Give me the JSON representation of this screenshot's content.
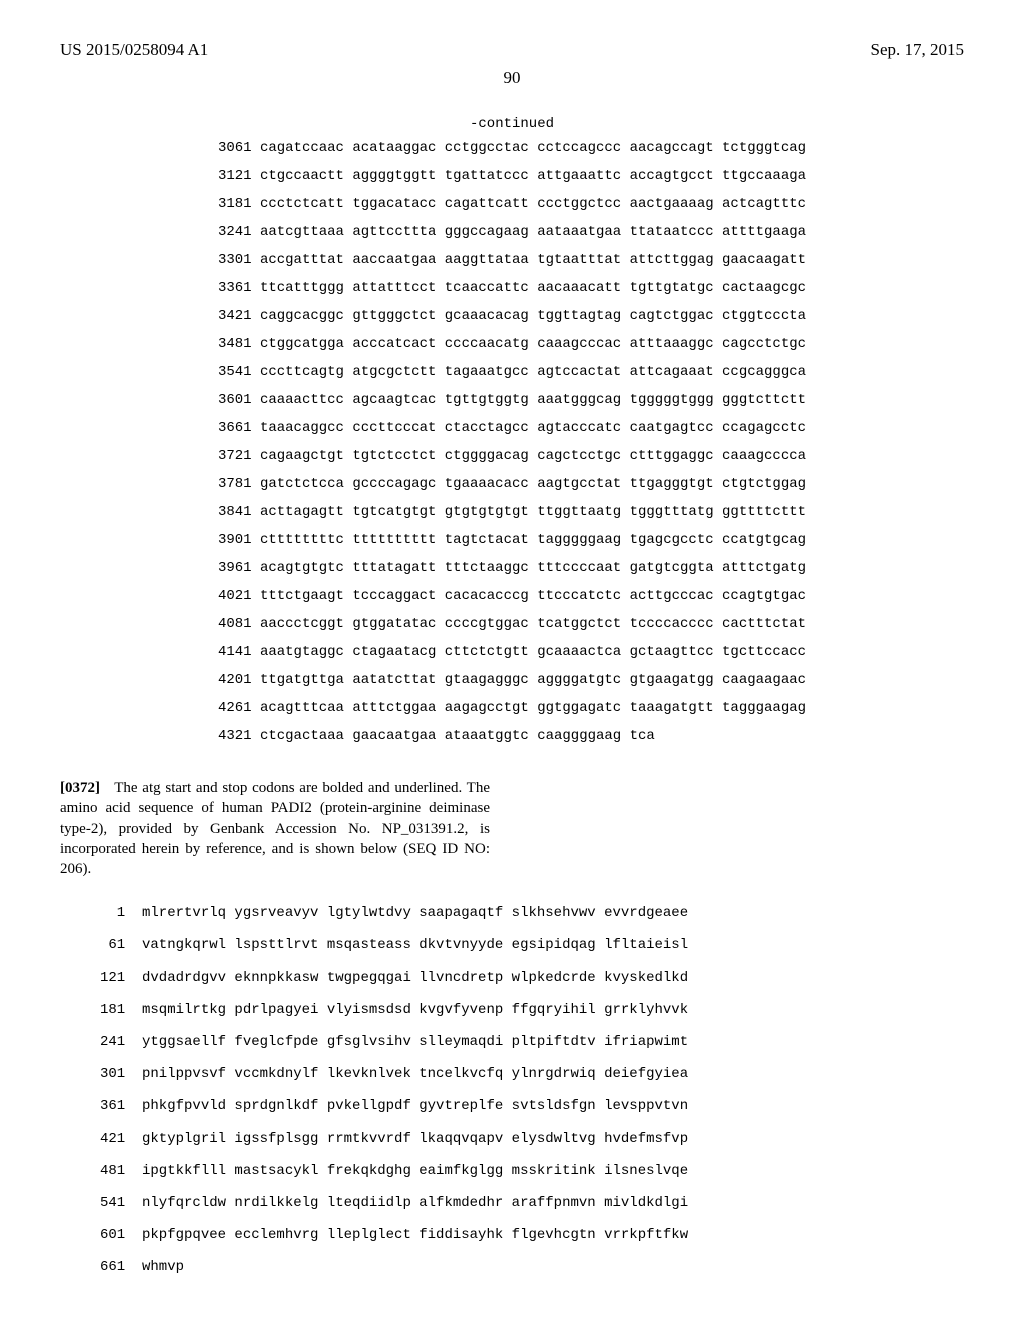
{
  "header": {
    "pub_number": "US 2015/0258094 A1",
    "pub_date": "Sep. 17, 2015"
  },
  "page_number": "90",
  "continued_label": "-continued",
  "dna_sequence": {
    "lines": [
      {
        "num": "3061",
        "groups": [
          "cagatccaac",
          "acataaggac",
          "cctggcctac",
          "cctccagccc",
          "aacagccagt",
          "tctgggtcag"
        ]
      },
      {
        "num": "3121",
        "groups": [
          "ctgccaactt",
          "aggggtggtt",
          "tgattatccc",
          "attgaaattc",
          "accagtgcct",
          "ttgccaaaga"
        ]
      },
      {
        "num": "3181",
        "groups": [
          "ccctctcatt",
          "tggacatacc",
          "cagattcatt",
          "ccctggctcc",
          "aactgaaaag",
          "actcagtttc"
        ]
      },
      {
        "num": "3241",
        "groups": [
          "aatcgttaaa",
          "agttccttta",
          "gggccagaag",
          "aataaatgaa",
          "ttataatccc",
          "attttgaaga"
        ]
      },
      {
        "num": "3301",
        "groups": [
          "accgatttat",
          "aaccaatgaa",
          "aaggttataa",
          "tgtaatttat",
          "attcttggag",
          "gaacaagatt"
        ]
      },
      {
        "num": "3361",
        "groups": [
          "ttcatttggg",
          "attatttcct",
          "tcaaccattc",
          "aacaaacatt",
          "tgttgtatgc",
          "cactaagcgc"
        ]
      },
      {
        "num": "3421",
        "groups": [
          "caggcacggc",
          "gttgggctct",
          "gcaaacacag",
          "tggttagtag",
          "cagtctggac",
          "ctggtcccta"
        ]
      },
      {
        "num": "3481",
        "groups": [
          "ctggcatgga",
          "acccatcact",
          "ccccaacatg",
          "caaagcccac",
          "atttaaaggc",
          "cagcctctgc"
        ]
      },
      {
        "num": "3541",
        "groups": [
          "cccttcagtg",
          "atgcgctctt",
          "tagaaatgcc",
          "agtccactat",
          "attcagaaat",
          "ccgcagggca"
        ]
      },
      {
        "num": "3601",
        "groups": [
          "caaaacttcc",
          "agcaagtcac",
          "tgttgtggtg",
          "aaatgggcag",
          "tgggggtggg",
          "gggtcttctt"
        ]
      },
      {
        "num": "3661",
        "groups": [
          "taaacaggcc",
          "cccttcccat",
          "ctacctagcc",
          "agtacccatc",
          "caatgagtcc",
          "ccagagcctc"
        ]
      },
      {
        "num": "3721",
        "groups": [
          "cagaagctgt",
          "tgtctcctct",
          "ctggggacag",
          "cagctcctgc",
          "ctttggaggc",
          "caaagcccca"
        ]
      },
      {
        "num": "3781",
        "groups": [
          "gatctctcca",
          "gccccagagc",
          "tgaaaacacc",
          "aagtgcctat",
          "ttgagggtgt",
          "ctgtctggag"
        ]
      },
      {
        "num": "3841",
        "groups": [
          "acttagagtt",
          "tgtcatgtgt",
          "gtgtgtgtgt",
          "ttggttaatg",
          "tgggtttatg",
          "ggttttcttt"
        ]
      },
      {
        "num": "3901",
        "groups": [
          "cttttttttc",
          "tttttttttt",
          "tagtctacat",
          "tagggggaag",
          "tgagcgcctc",
          "ccatgtgcag"
        ]
      },
      {
        "num": "3961",
        "groups": [
          "acagtgtgtc",
          "tttatagatt",
          "tttctaaggc",
          "tttccccaat",
          "gatgtcggta",
          "atttctgatg"
        ]
      },
      {
        "num": "4021",
        "groups": [
          "tttctgaagt",
          "tcccaggact",
          "cacacacccg",
          "ttcccatctc",
          "acttgcccac",
          "ccagtgtgac"
        ]
      },
      {
        "num": "4081",
        "groups": [
          "aaccctcggt",
          "gtggatatac",
          "ccccgtggac",
          "tcatggctct",
          "tccccacccc",
          "cactttctat"
        ]
      },
      {
        "num": "4141",
        "groups": [
          "aaatgtaggc",
          "ctagaatacg",
          "cttctctgtt",
          "gcaaaactca",
          "gctaagttcc",
          "tgcttccacc"
        ]
      },
      {
        "num": "4201",
        "groups": [
          "ttgatgttga",
          "aatatcttat",
          "gtaagagggc",
          "aggggatgtc",
          "gtgaagatgg",
          "caagaagaac"
        ]
      },
      {
        "num": "4261",
        "groups": [
          "acagtttcaa",
          "atttctggaa",
          "aagagcctgt",
          "ggtggagatc",
          "taaagatgtt",
          "tagggaagag"
        ]
      },
      {
        "num": "4321",
        "groups": [
          "ctcgactaaa",
          "gaacaatgaa",
          "ataaatggtc",
          "caaggggaag",
          "tca"
        ]
      }
    ]
  },
  "paragraph": {
    "label": "[0372]",
    "text": "The atg start and stop codons are bolded and underlined. The amino acid sequence of human PADI2 (protein-arginine deiminase type-2), provided by Genbank Accession No. NP_031391.2, is incorporated herein by reference, and is shown below (SEQ ID NO: 206)."
  },
  "aa_sequence": {
    "lines": [
      {
        "num": "1",
        "groups": [
          "mlrertvrlq",
          "ygsrveavyv",
          "lgtylwtdvy",
          "saapagaqtf",
          "slkhsehvwv",
          "evvrdgeaee"
        ]
      },
      {
        "num": "61",
        "groups": [
          "vatngkqrwl",
          "lspsttlrvt",
          "msqasteass",
          "dkvtvnyyde",
          "egsipidqag",
          "lfltaieisl"
        ]
      },
      {
        "num": "121",
        "groups": [
          "dvdadrdgvv",
          "eknnpkkasw",
          "twgpegqgai",
          "llvncdretp",
          "wlpkedcrde",
          "kvyskedlkd"
        ]
      },
      {
        "num": "181",
        "groups": [
          "msqmilrtkg",
          "pdrlpagyei",
          "vlyismsdsd",
          "kvgvfyvenp",
          "ffgqryihil",
          "grrklyhvvk"
        ]
      },
      {
        "num": "241",
        "groups": [
          "ytggsaellf",
          "fveglcfpde",
          "gfsglvsihv",
          "slleymaqdi",
          "pltpiftdtv",
          "ifriapwimt"
        ]
      },
      {
        "num": "301",
        "groups": [
          "pnilppvsvf",
          "vccmkdnylf",
          "lkevknlvek",
          "tncelkvcfq",
          "ylnrgdrwiq",
          "deiefgyiea"
        ]
      },
      {
        "num": "361",
        "groups": [
          "phkgfpvvld",
          "sprdgnlkdf",
          "pvkellgpdf",
          "gyvtreplfe",
          "svtsldsfgn",
          "levsppvtvn"
        ]
      },
      {
        "num": "421",
        "groups": [
          "gktyplgril",
          "igssfplsgg",
          "rrmtkvvrdf",
          "lkaqqvqapv",
          "elysdwltvg",
          "hvdefmsfvp"
        ]
      },
      {
        "num": "481",
        "groups": [
          "ipgtkkflll",
          "mastsacykl",
          "frekqkdghg",
          "eaimfkglgg",
          "msskritink",
          "ilsneslvqe"
        ]
      },
      {
        "num": "541",
        "groups": [
          "nlyfqrcldw",
          "nrdilkkelg",
          "lteqdiidlp",
          "alfkmdedhr",
          "araffpnmvn",
          "mivldkdlgi"
        ]
      },
      {
        "num": "601",
        "groups": [
          "pkpfgpqvee",
          "ecclemhvrg",
          "lleplglect",
          "fiddisayhk",
          "flgevhcgtn",
          "vrrkpftfkw"
        ]
      },
      {
        "num": "661",
        "groups": [
          "whmvp"
        ]
      }
    ]
  }
}
